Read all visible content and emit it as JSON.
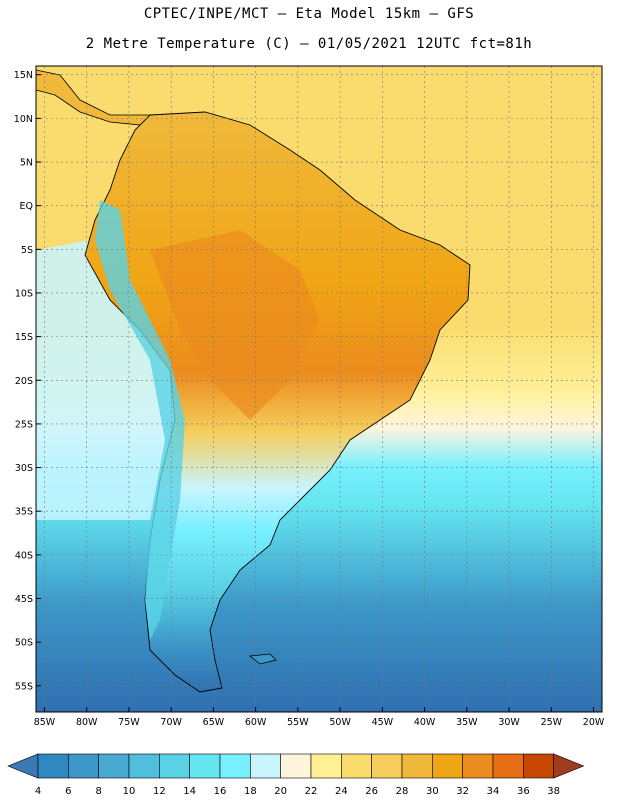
{
  "header": {
    "line1": "CPTEC/INPE/MCT –  Eta Model 15km – GFS",
    "line2": "2 Metre Temperature (C) – 01/05/2021 12UTC fct=81h"
  },
  "map": {
    "lat_labels": [
      "15N",
      "10N",
      "5N",
      "EQ",
      "5S",
      "10S",
      "15S",
      "20S",
      "25S",
      "30S",
      "35S",
      "40S",
      "45S",
      "50S",
      "55S"
    ],
    "lon_labels": [
      "85W",
      "80W",
      "75W",
      "70W",
      "65W",
      "60W",
      "55W",
      "50W",
      "45W",
      "40W",
      "35W",
      "30W",
      "25W",
      "20W"
    ],
    "extent": {
      "lon": [
        -86,
        -19
      ],
      "lat": [
        -58,
        16
      ]
    }
  },
  "colorbar": {
    "labels": [
      "4",
      "6",
      "8",
      "10",
      "12",
      "14",
      "16",
      "18",
      "20",
      "22",
      "24",
      "26",
      "28",
      "30",
      "32",
      "34",
      "36",
      "38"
    ],
    "colors": [
      "#3c78b4",
      "#2f88c0",
      "#3c96c8",
      "#48aad2",
      "#50bedc",
      "#5ad2e6",
      "#64e6f0",
      "#78f0ff",
      "#c8f5ff",
      "#fff5dc",
      "#fff096",
      "#fadc6e",
      "#f5cd5a",
      "#f0b93c",
      "#f0a514",
      "#eb8c1e",
      "#e66e14",
      "#c84600",
      "#a03c1e"
    ]
  }
}
